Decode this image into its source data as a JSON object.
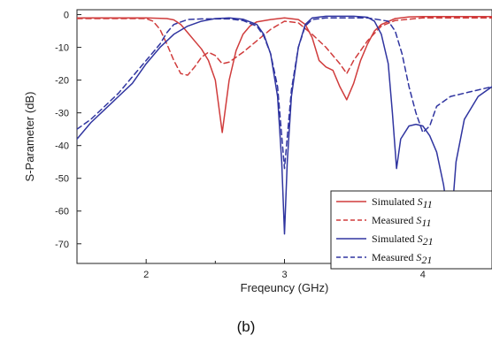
{
  "chart_data": {
    "type": "line",
    "title": "",
    "xlabel": "Freqeuncy (GHz)",
    "ylabel": "S-Parameter (dB)",
    "xlim": [
      1.5,
      4.5
    ],
    "ylim": [
      -76,
      1.5
    ],
    "xticks": [
      2,
      3,
      4
    ],
    "yticks": [
      0,
      -10,
      -20,
      -30,
      -40,
      -50,
      -60,
      -70
    ],
    "grid": false,
    "legend_position": "bottom-right",
    "series": [
      {
        "name": "Simulated S11",
        "label_main": "Simulated ",
        "label_sub": "S11",
        "color": "#d03c3c",
        "dash": "solid",
        "points": [
          [
            1.5,
            -1.0
          ],
          [
            2.0,
            -1.0
          ],
          [
            2.15,
            -1.2
          ],
          [
            2.2,
            -1.6
          ],
          [
            2.25,
            -3.0
          ],
          [
            2.3,
            -5.5
          ],
          [
            2.35,
            -8.0
          ],
          [
            2.4,
            -10.5
          ],
          [
            2.45,
            -14.0
          ],
          [
            2.5,
            -20.0
          ],
          [
            2.55,
            -36.0
          ],
          [
            2.6,
            -20.0
          ],
          [
            2.65,
            -11.0
          ],
          [
            2.7,
            -6.0
          ],
          [
            2.75,
            -3.5
          ],
          [
            2.8,
            -2.2
          ],
          [
            2.9,
            -1.5
          ],
          [
            3.0,
            -1.0
          ],
          [
            3.1,
            -1.5
          ],
          [
            3.15,
            -3.0
          ],
          [
            3.2,
            -7.0
          ],
          [
            3.25,
            -14.0
          ],
          [
            3.3,
            -16.0
          ],
          [
            3.35,
            -17.0
          ],
          [
            3.4,
            -22.0
          ],
          [
            3.45,
            -26.0
          ],
          [
            3.5,
            -21.0
          ],
          [
            3.55,
            -14.0
          ],
          [
            3.6,
            -9.0
          ],
          [
            3.65,
            -5.0
          ],
          [
            3.7,
            -3.0
          ],
          [
            3.8,
            -1.2
          ],
          [
            3.9,
            -0.7
          ],
          [
            4.0,
            -0.6
          ],
          [
            4.2,
            -0.6
          ],
          [
            4.5,
            -0.6
          ]
        ]
      },
      {
        "name": "Measured S11",
        "label_main": "Measured ",
        "label_sub": "S11",
        "color": "#d03c3c",
        "dash": "dashed",
        "points": [
          [
            1.5,
            -1.2
          ],
          [
            2.0,
            -1.2
          ],
          [
            2.05,
            -2.0
          ],
          [
            2.1,
            -4.5
          ],
          [
            2.15,
            -9.0
          ],
          [
            2.2,
            -14.0
          ],
          [
            2.25,
            -18.0
          ],
          [
            2.3,
            -18.5
          ],
          [
            2.35,
            -16.0
          ],
          [
            2.4,
            -13.0
          ],
          [
            2.45,
            -11.5
          ],
          [
            2.5,
            -12.5
          ],
          [
            2.55,
            -15.0
          ],
          [
            2.6,
            -14.5
          ],
          [
            2.7,
            -11.5
          ],
          [
            2.8,
            -8.0
          ],
          [
            2.9,
            -4.5
          ],
          [
            3.0,
            -2.0
          ],
          [
            3.1,
            -2.5
          ],
          [
            3.2,
            -6.0
          ],
          [
            3.3,
            -10.0
          ],
          [
            3.4,
            -15.0
          ],
          [
            3.45,
            -18.0
          ],
          [
            3.5,
            -14.0
          ],
          [
            3.6,
            -8.0
          ],
          [
            3.7,
            -3.5
          ],
          [
            3.8,
            -1.8
          ],
          [
            4.0,
            -1.0
          ],
          [
            4.5,
            -1.0
          ]
        ]
      },
      {
        "name": "Simulated S21",
        "label_main": "Simulated ",
        "label_sub": "S21",
        "color": "#3035a0",
        "dash": "solid",
        "points": [
          [
            1.5,
            -38.0
          ],
          [
            1.6,
            -33.0
          ],
          [
            1.7,
            -29.0
          ],
          [
            1.8,
            -25.0
          ],
          [
            1.9,
            -21.0
          ],
          [
            2.0,
            -15.0
          ],
          [
            2.1,
            -10.0
          ],
          [
            2.2,
            -6.0
          ],
          [
            2.3,
            -3.5
          ],
          [
            2.4,
            -2.0
          ],
          [
            2.5,
            -1.2
          ],
          [
            2.6,
            -1.0
          ],
          [
            2.7,
            -1.4
          ],
          [
            2.8,
            -3.0
          ],
          [
            2.85,
            -6.0
          ],
          [
            2.9,
            -12.0
          ],
          [
            2.95,
            -25.0
          ],
          [
            2.98,
            -45.0
          ],
          [
            3.0,
            -67.0
          ],
          [
            3.02,
            -45.0
          ],
          [
            3.05,
            -25.0
          ],
          [
            3.1,
            -10.0
          ],
          [
            3.15,
            -3.0
          ],
          [
            3.2,
            -1.0
          ],
          [
            3.3,
            -0.5
          ],
          [
            3.5,
            -0.5
          ],
          [
            3.6,
            -0.8
          ],
          [
            3.65,
            -2.0
          ],
          [
            3.7,
            -6.0
          ],
          [
            3.75,
            -15.0
          ],
          [
            3.78,
            -30.0
          ],
          [
            3.81,
            -47.0
          ],
          [
            3.84,
            -38.0
          ],
          [
            3.9,
            -34.0
          ],
          [
            3.95,
            -33.5
          ],
          [
            4.0,
            -34.0
          ],
          [
            4.05,
            -37.0
          ],
          [
            4.1,
            -42.0
          ],
          [
            4.15,
            -52.0
          ],
          [
            4.2,
            -67.0
          ],
          [
            4.24,
            -45.0
          ],
          [
            4.3,
            -32.0
          ],
          [
            4.4,
            -25.0
          ],
          [
            4.5,
            -22.0
          ]
        ]
      },
      {
        "name": "Measured S21",
        "label_main": "Measured ",
        "label_sub": "S21",
        "color": "#3035a0",
        "dash": "dashed",
        "points": [
          [
            1.5,
            -35.0
          ],
          [
            1.6,
            -32.0
          ],
          [
            1.7,
            -28.0
          ],
          [
            1.8,
            -24.0
          ],
          [
            1.9,
            -19.0
          ],
          [
            2.0,
            -14.0
          ],
          [
            2.1,
            -9.0
          ],
          [
            2.15,
            -5.5
          ],
          [
            2.2,
            -3.0
          ],
          [
            2.3,
            -1.5
          ],
          [
            2.4,
            -1.3
          ],
          [
            2.6,
            -1.3
          ],
          [
            2.7,
            -1.8
          ],
          [
            2.8,
            -3.5
          ],
          [
            2.85,
            -6.5
          ],
          [
            2.9,
            -12.0
          ],
          [
            2.95,
            -22.0
          ],
          [
            3.0,
            -47.0
          ],
          [
            3.05,
            -23.0
          ],
          [
            3.1,
            -10.0
          ],
          [
            3.15,
            -3.5
          ],
          [
            3.2,
            -1.5
          ],
          [
            3.3,
            -1.0
          ],
          [
            3.6,
            -1.0
          ],
          [
            3.75,
            -2.0
          ],
          [
            3.8,
            -5.0
          ],
          [
            3.85,
            -12.0
          ],
          [
            3.9,
            -22.0
          ],
          [
            3.95,
            -30.0
          ],
          [
            4.0,
            -36.0
          ],
          [
            4.05,
            -34.0
          ],
          [
            4.1,
            -28.0
          ],
          [
            4.2,
            -25.0
          ],
          [
            4.3,
            -24.0
          ],
          [
            4.5,
            -22.0
          ]
        ]
      }
    ]
  },
  "caption": "(b)"
}
